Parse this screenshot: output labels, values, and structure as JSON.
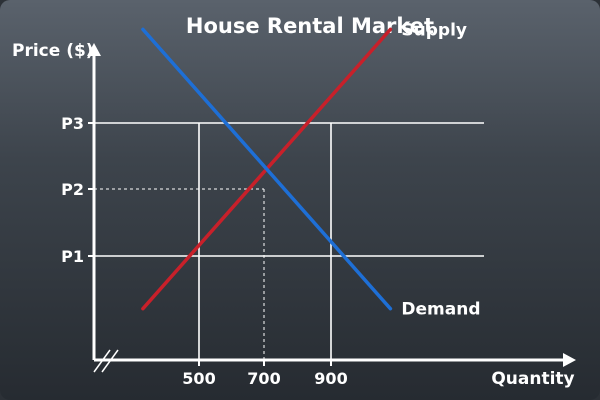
{
  "chart_data": {
    "type": "line",
    "title": "House Rental Market",
    "xlabel": "Quantity",
    "ylabel": "Price ($)",
    "x_ticks": [
      "500",
      "700",
      "900"
    ],
    "y_ticks": [
      "P1",
      "P2",
      "P3"
    ],
    "grid": true,
    "axis_break": true,
    "series": [
      {
        "name": "Supply",
        "color": "#c8202a",
        "points": [
          {
            "x": 330,
            "y": 0.2
          },
          {
            "x": 1080,
            "y": 4.4
          }
        ]
      },
      {
        "name": "Demand",
        "color": "#1e6fd6",
        "points": [
          {
            "x": 330,
            "y": 4.4
          },
          {
            "x": 1080,
            "y": 0.2
          }
        ]
      }
    ],
    "equilibrium": {
      "x": "700",
      "y": "P2"
    }
  }
}
